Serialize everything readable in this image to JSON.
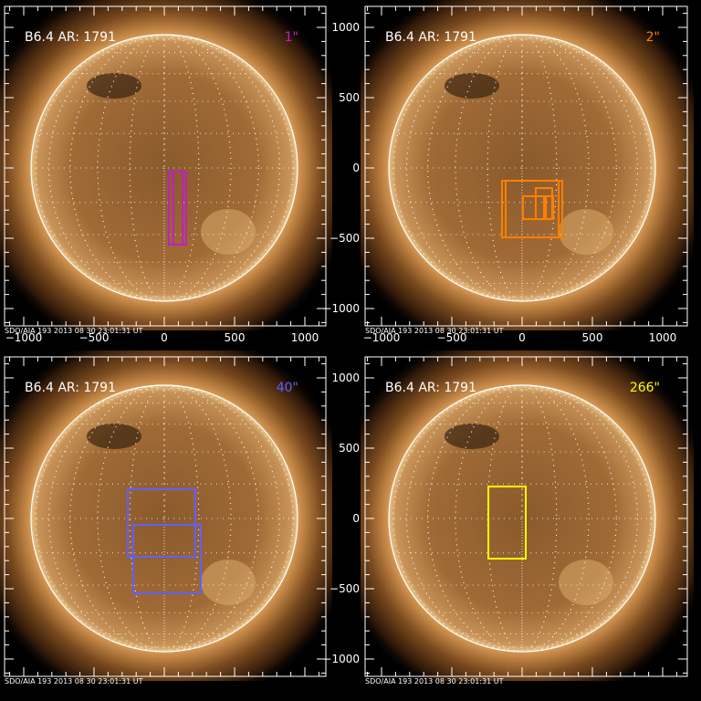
{
  "chart_data": [
    {
      "type": "image-with-overlays",
      "title": "B6.4 AR: 1791",
      "tag": "1\"",
      "tag_color": "#c020c0",
      "footer": "SDO/AIA 193  2013 08 30 23:01:31 UT",
      "xticks": [
        -1000,
        -500,
        0,
        500,
        1000
      ],
      "yticks": [
        1000,
        500,
        0,
        -500,
        -1000
      ],
      "xlim": [
        -1130,
        1150
      ],
      "ylim": [
        -1130,
        1150
      ],
      "show_xticks": true,
      "show_yticks": false,
      "boxes": [
        {
          "x": [
            32,
            130
          ],
          "y": [
            -545,
            -26
          ]
        },
        {
          "x": [
            65,
            155
          ],
          "y": [
            -545,
            -26
          ]
        }
      ]
    },
    {
      "type": "image-with-overlays",
      "title": "B6.4 AR: 1791",
      "tag": "2\"",
      "tag_color": "#ff7f00",
      "footer": "SDO/AIA 193  2013 08 30 23:01:31 UT",
      "xticks": [
        -1000,
        -500,
        0,
        500,
        1000
      ],
      "yticks": [
        1000,
        500,
        0,
        -500,
        -1000
      ],
      "xlim": [
        -1130,
        1150
      ],
      "ylim": [
        -1130,
        1150
      ],
      "show_xticks": true,
      "show_yticks": true,
      "boxes": [
        {
          "x": [
            -143,
            286
          ],
          "y": [
            -494,
            -91
          ]
        },
        {
          "x": [
            -117,
            260
          ],
          "y": [
            -494,
            -91
          ]
        },
        {
          "x": [
            6,
            169
          ],
          "y": [
            -364,
            -201
          ]
        },
        {
          "x": [
            97,
            214
          ],
          "y": [
            -364,
            -143
          ]
        },
        {
          "x": [
            156,
            221
          ],
          "y": [
            -364,
            -201
          ]
        }
      ]
    },
    {
      "type": "image-with-overlays",
      "title": "B6.4 AR: 1791",
      "tag": "40\"",
      "tag_color": "#6060ff",
      "footer": "SDO/AIA 193  2013 08 30 23:01:31 UT",
      "xticks": [
        -1000,
        -500,
        0,
        500,
        1000
      ],
      "yticks": [
        1000,
        500,
        0,
        -500,
        -1000
      ],
      "xlim": [
        -1130,
        1150
      ],
      "ylim": [
        -1130,
        1150
      ],
      "show_xticks": false,
      "show_yticks": false,
      "boxes": [
        {
          "x": [
            -260,
            220
          ],
          "y": [
            -273,
            208
          ]
        },
        {
          "x": [
            -221,
            260
          ],
          "y": [
            -532,
            -45
          ]
        }
      ]
    },
    {
      "type": "image-with-overlays",
      "title": "B6.4 AR: 1791",
      "tag": "266\"",
      "tag_color": "#ffff00",
      "footer": "SDO/AIA 193  2013 08 30 23:01:31 UT",
      "xticks": [
        -1000,
        -500,
        0,
        500,
        1000
      ],
      "yticks": [
        1000,
        500,
        0,
        -500,
        -1000
      ],
      "xlim": [
        -1130,
        1150
      ],
      "ylim": [
        -1130,
        1150
      ],
      "show_xticks": false,
      "show_yticks": true,
      "boxes": [
        {
          "x": [
            -240,
            26
          ],
          "y": [
            -286,
            227
          ]
        }
      ]
    }
  ]
}
